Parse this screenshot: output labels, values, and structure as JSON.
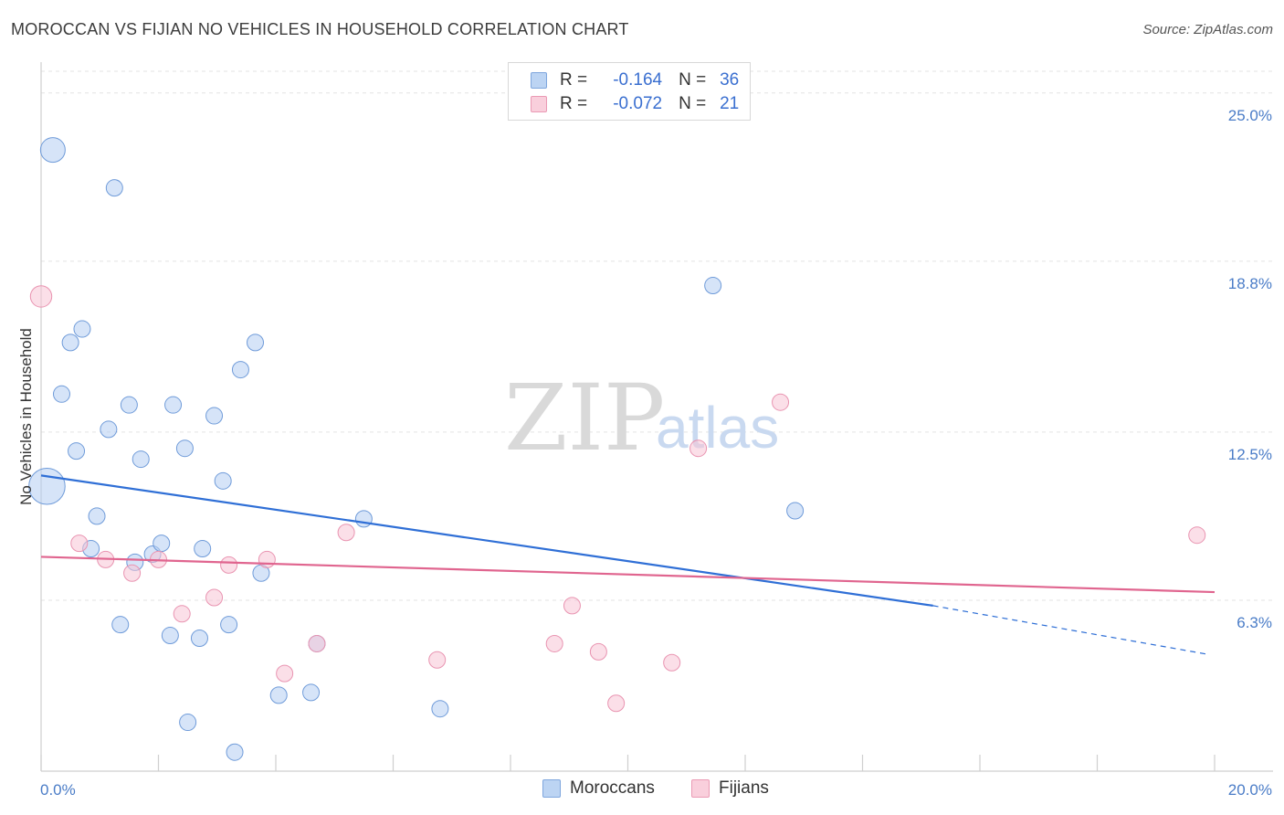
{
  "header": {
    "title": "MOROCCAN VS FIJIAN NO VEHICLES IN HOUSEHOLD CORRELATION CHART",
    "source": "Source: ZipAtlas.com"
  },
  "watermark": {
    "zip": "ZIP",
    "atlas": "atlas"
  },
  "legend": {
    "rows": [
      {
        "r_label": "R =",
        "r_value": "-0.164",
        "n_label": "N =",
        "n_value": "36"
      },
      {
        "r_label": "R =",
        "r_value": "-0.072",
        "n_label": "N =",
        "n_value": "21"
      }
    ]
  },
  "bottom_legend": {
    "moroccans": "Moroccans",
    "fijians": "Fijians"
  },
  "chart_data": {
    "type": "scatter",
    "title": "MOROCCAN VS FIJIAN NO VEHICLES IN HOUSEHOLD CORRELATION CHART",
    "xlabel": "",
    "ylabel": "No Vehicles in Household",
    "xlim": [
      0,
      20
    ],
    "ylim": [
      0,
      25.8
    ],
    "x_tick_labels": [
      "0.0%",
      "20.0%"
    ],
    "y_ticks": [
      6.3,
      12.5,
      18.8,
      25.0
    ],
    "y_tick_labels": [
      "6.3%",
      "12.5%",
      "18.8%",
      "25.0%"
    ],
    "colors": {
      "moroccans": "#a9c8ee",
      "moroccans_line": "#2f6fd6",
      "fijians": "#f5b8cb",
      "fijians_line": "#e0658f",
      "tick": "#4a7cc7"
    },
    "series": [
      {
        "name": "Moroccans",
        "R": -0.164,
        "N": 36,
        "points": [
          {
            "x": 0.2,
            "y": 22.9,
            "s": 1.5
          },
          {
            "x": 1.25,
            "y": 21.5,
            "s": 1
          },
          {
            "x": 0.5,
            "y": 15.8,
            "s": 1
          },
          {
            "x": 0.7,
            "y": 16.3,
            "s": 1
          },
          {
            "x": 0.35,
            "y": 13.9,
            "s": 1
          },
          {
            "x": 0.6,
            "y": 11.8,
            "s": 1
          },
          {
            "x": 1.15,
            "y": 12.6,
            "s": 1
          },
          {
            "x": 1.5,
            "y": 13.5,
            "s": 1
          },
          {
            "x": 1.7,
            "y": 11.5,
            "s": 1
          },
          {
            "x": 2.25,
            "y": 13.5,
            "s": 1
          },
          {
            "x": 2.45,
            "y": 11.9,
            "s": 1
          },
          {
            "x": 2.95,
            "y": 13.1,
            "s": 1
          },
          {
            "x": 3.4,
            "y": 14.8,
            "s": 1
          },
          {
            "x": 3.65,
            "y": 15.8,
            "s": 1
          },
          {
            "x": 3.1,
            "y": 10.7,
            "s": 1
          },
          {
            "x": 0.1,
            "y": 10.5,
            "s": 2.2
          },
          {
            "x": 0.95,
            "y": 9.4,
            "s": 1
          },
          {
            "x": 0.85,
            "y": 8.2,
            "s": 1
          },
          {
            "x": 1.6,
            "y": 7.7,
            "s": 1
          },
          {
            "x": 1.9,
            "y": 8.0,
            "s": 1
          },
          {
            "x": 2.05,
            "y": 8.4,
            "s": 1
          },
          {
            "x": 2.75,
            "y": 8.2,
            "s": 1
          },
          {
            "x": 3.75,
            "y": 7.3,
            "s": 1
          },
          {
            "x": 5.5,
            "y": 9.3,
            "s": 1
          },
          {
            "x": 1.35,
            "y": 5.4,
            "s": 1
          },
          {
            "x": 2.2,
            "y": 5.0,
            "s": 1
          },
          {
            "x": 2.7,
            "y": 4.9,
            "s": 1
          },
          {
            "x": 3.2,
            "y": 5.4,
            "s": 1
          },
          {
            "x": 4.7,
            "y": 4.7,
            "s": 1
          },
          {
            "x": 4.05,
            "y": 2.8,
            "s": 1
          },
          {
            "x": 4.6,
            "y": 2.9,
            "s": 1
          },
          {
            "x": 6.8,
            "y": 2.3,
            "s": 1
          },
          {
            "x": 2.5,
            "y": 1.8,
            "s": 1
          },
          {
            "x": 3.3,
            "y": 0.7,
            "s": 1
          },
          {
            "x": 11.45,
            "y": 17.9,
            "s": 1
          },
          {
            "x": 12.85,
            "y": 9.6,
            "s": 1
          }
        ],
        "trend": {
          "x_start": 0,
          "y_start": 10.9,
          "x_solid_end": 15.2,
          "y_solid_end": 6.1,
          "x_end": 19.9,
          "y_end": 4.3
        }
      },
      {
        "name": "Fijians",
        "R": -0.072,
        "N": 21,
        "points": [
          {
            "x": 0.0,
            "y": 17.5,
            "s": 1.3
          },
          {
            "x": 0.65,
            "y": 8.4,
            "s": 1
          },
          {
            "x": 1.1,
            "y": 7.8,
            "s": 1
          },
          {
            "x": 1.55,
            "y": 7.3,
            "s": 1
          },
          {
            "x": 2.0,
            "y": 7.8,
            "s": 1
          },
          {
            "x": 3.2,
            "y": 7.6,
            "s": 1
          },
          {
            "x": 3.85,
            "y": 7.8,
            "s": 1
          },
          {
            "x": 5.2,
            "y": 8.8,
            "s": 1
          },
          {
            "x": 2.4,
            "y": 5.8,
            "s": 1
          },
          {
            "x": 2.95,
            "y": 6.4,
            "s": 1
          },
          {
            "x": 4.15,
            "y": 3.6,
            "s": 1
          },
          {
            "x": 4.7,
            "y": 4.7,
            "s": 1
          },
          {
            "x": 6.75,
            "y": 4.1,
            "s": 1
          },
          {
            "x": 8.75,
            "y": 4.7,
            "s": 1
          },
          {
            "x": 9.05,
            "y": 6.1,
            "s": 1
          },
          {
            "x": 9.5,
            "y": 4.4,
            "s": 1
          },
          {
            "x": 9.8,
            "y": 2.5,
            "s": 1
          },
          {
            "x": 10.75,
            "y": 4.0,
            "s": 1
          },
          {
            "x": 11.2,
            "y": 11.9,
            "s": 1
          },
          {
            "x": 12.6,
            "y": 13.6,
            "s": 1
          },
          {
            "x": 19.7,
            "y": 8.7,
            "s": 1
          }
        ],
        "trend": {
          "x_start": 0,
          "y_start": 7.9,
          "x_end": 20.0,
          "y_end": 6.6
        }
      }
    ]
  }
}
